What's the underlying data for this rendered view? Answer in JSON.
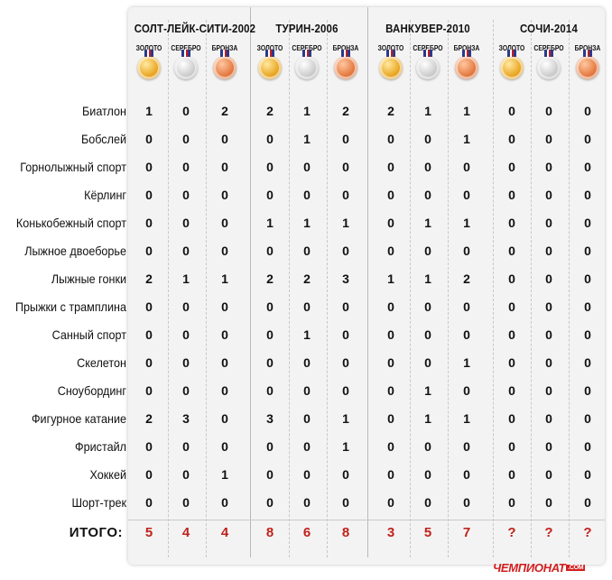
{
  "olympics": [
    {
      "name": "СОЛТ-ЛЕЙК-СИТИ-2002"
    },
    {
      "name": "ТУРИН-2006"
    },
    {
      "name": "ВАНКУВЕР-2010"
    },
    {
      "name": "СОЧИ-2014"
    }
  ],
  "medal_labels": [
    "ЗОЛОТО",
    "СЕРЕБРО",
    "БРОНЗА"
  ],
  "medal_colors": {
    "gold": "#e8a21b",
    "silver": "#c9c9c9",
    "bronze": "#e2743a"
  },
  "sports": [
    {
      "name": "Биатлон",
      "v": [
        "1",
        "0",
        "2",
        "2",
        "1",
        "2",
        "2",
        "1",
        "1",
        "0",
        "0",
        "0"
      ]
    },
    {
      "name": "Бобслей",
      "v": [
        "0",
        "0",
        "0",
        "0",
        "1",
        "0",
        "0",
        "0",
        "1",
        "0",
        "0",
        "0"
      ]
    },
    {
      "name": "Горнолыжный спорт",
      "v": [
        "0",
        "0",
        "0",
        "0",
        "0",
        "0",
        "0",
        "0",
        "0",
        "0",
        "0",
        "0"
      ]
    },
    {
      "name": "Кёрлинг",
      "v": [
        "0",
        "0",
        "0",
        "0",
        "0",
        "0",
        "0",
        "0",
        "0",
        "0",
        "0",
        "0"
      ]
    },
    {
      "name": "Конькобежный спорт",
      "v": [
        "0",
        "0",
        "0",
        "1",
        "1",
        "1",
        "0",
        "1",
        "1",
        "0",
        "0",
        "0"
      ]
    },
    {
      "name": "Лыжное двоеборье",
      "v": [
        "0",
        "0",
        "0",
        "0",
        "0",
        "0",
        "0",
        "0",
        "0",
        "0",
        "0",
        "0"
      ]
    },
    {
      "name": "Лыжные гонки",
      "v": [
        "2",
        "1",
        "1",
        "2",
        "2",
        "3",
        "1",
        "1",
        "2",
        "0",
        "0",
        "0"
      ]
    },
    {
      "name": "Прыжки с трамплина",
      "v": [
        "0",
        "0",
        "0",
        "0",
        "0",
        "0",
        "0",
        "0",
        "0",
        "0",
        "0",
        "0"
      ]
    },
    {
      "name": "Санный спорт",
      "v": [
        "0",
        "0",
        "0",
        "0",
        "1",
        "0",
        "0",
        "0",
        "0",
        "0",
        "0",
        "0"
      ]
    },
    {
      "name": "Скелетон",
      "v": [
        "0",
        "0",
        "0",
        "0",
        "0",
        "0",
        "0",
        "0",
        "1",
        "0",
        "0",
        "0"
      ]
    },
    {
      "name": "Сноубординг",
      "v": [
        "0",
        "0",
        "0",
        "0",
        "0",
        "0",
        "0",
        "1",
        "0",
        "0",
        "0",
        "0"
      ]
    },
    {
      "name": "Фигурное катание",
      "v": [
        "2",
        "3",
        "0",
        "3",
        "0",
        "1",
        "0",
        "1",
        "1",
        "0",
        "0",
        "0"
      ]
    },
    {
      "name": "Фристайл",
      "v": [
        "0",
        "0",
        "0",
        "0",
        "0",
        "1",
        "0",
        "0",
        "0",
        "0",
        "0",
        "0"
      ]
    },
    {
      "name": "Хоккей",
      "v": [
        "0",
        "0",
        "1",
        "0",
        "0",
        "0",
        "0",
        "0",
        "0",
        "0",
        "0",
        "0"
      ]
    },
    {
      "name": "Шорт-трек",
      "v": [
        "0",
        "0",
        "0",
        "0",
        "0",
        "0",
        "0",
        "0",
        "0",
        "0",
        "0",
        "0"
      ]
    }
  ],
  "total": {
    "label": "ИТОГО:",
    "values": [
      "5",
      "4",
      "4",
      "8",
      "6",
      "8",
      "3",
      "5",
      "7",
      "?",
      "?",
      "?"
    ],
    "color": "#c0221b"
  },
  "logo": {
    "text": "ЧЕМПИОНАТ",
    "suffix": ".COM"
  }
}
